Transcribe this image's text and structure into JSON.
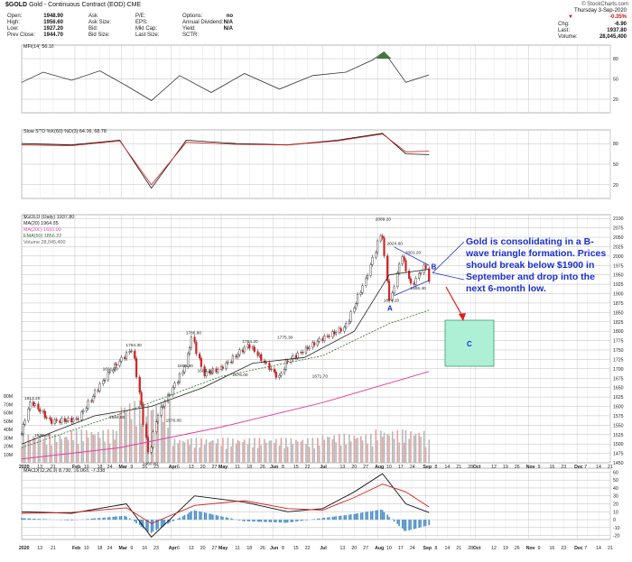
{
  "header": {
    "symbol": "$GOLD",
    "subtitle": "Gold - Continuous Contract (EOD)  CME",
    "credit": "© StockCharts.com",
    "date_line": "Thursday  3-Sep-2020",
    "change_pct": "-0.35%",
    "right_stats": [
      {
        "k": "Chg:",
        "v": "-6.90"
      },
      {
        "k": "Last:",
        "v": "1937.80"
      },
      {
        "k": "Volume:",
        "v": "28,045,400"
      }
    ],
    "quote_col1": [
      {
        "k": "Open:",
        "v": "1948.90"
      },
      {
        "k": "High:",
        "v": "1956.60"
      },
      {
        "k": "Low:",
        "v": "1927.20"
      },
      {
        "k": "Prev Close:",
        "v": "1944.70"
      }
    ],
    "quote_col2": [
      {
        "k": "Ask",
        "v": ""
      },
      {
        "k": "Ask Size:",
        "v": ""
      },
      {
        "k": "Bid:",
        "v": ""
      },
      {
        "k": "Bid Size:",
        "v": ""
      }
    ],
    "quote_col3": [
      {
        "k": "P/E:",
        "v": ""
      },
      {
        "k": "EPS:",
        "v": ""
      },
      {
        "k": "Mkt Cap:",
        "v": ""
      },
      {
        "k": "Last Size:",
        "v": ""
      }
    ],
    "quote_col4": [
      {
        "k": "Options:",
        "v": "no"
      },
      {
        "k": "Annual Dividend:",
        "v": "N/A"
      },
      {
        "k": "Yield:",
        "v": "N/A"
      },
      {
        "k": "SCTR:",
        "v": ""
      }
    ]
  },
  "panels": {
    "mfi_label": "MFI(14) 56.16",
    "sto_label": "Slow STO %K(60) %D(3) 64.06, 68.78",
    "price_legend": [
      "$GOLD (Daily) 1937.80",
      "MA(20) 1964.85",
      "MA(200) 1693.00",
      "EMA(50) 1856.22",
      "Volume 28,045,400"
    ],
    "macd_label": "MACD(12,26,9) 8.730, 16.068, -7.338",
    "mfi_ticks": [
      "80",
      "50",
      "20"
    ],
    "sto_ticks": [
      "80",
      "50",
      "20"
    ],
    "macd_ticks": [
      "60",
      "50",
      "40",
      "30",
      "20",
      "10",
      "0",
      "-10",
      "-20"
    ],
    "price_ticks": [
      "2100",
      "2075",
      "2050",
      "2025",
      "2000",
      "1975",
      "1950",
      "1925",
      "1900",
      "1875",
      "1850",
      "1825",
      "1800",
      "1775",
      "1750",
      "1725",
      "1700",
      "1675",
      "1650",
      "1625",
      "1600",
      "1575",
      "1550",
      "1525",
      "1500",
      "1475",
      "1450"
    ],
    "volume_ticks": [
      "80M",
      "70M",
      "60M",
      "50M",
      "40M",
      "30M",
      "20M",
      "10M"
    ]
  },
  "x_axis": {
    "labels": [
      "2020",
      "13",
      "21",
      "Feb",
      "10",
      "18",
      "24",
      "Mar",
      "9",
      "16",
      "23",
      "Apr",
      "6",
      "13",
      "20",
      "27",
      "May",
      "11",
      "18",
      "26",
      "Jun",
      "8",
      "15",
      "22",
      "Jul",
      "13",
      "20",
      "27",
      "Aug",
      "10",
      "17",
      "24",
      "Sep",
      "8",
      "14",
      "21",
      "28",
      "Oct",
      "12",
      "19",
      "26",
      "Nov",
      "9",
      "16",
      "23",
      "Dec",
      "7",
      "14",
      "21"
    ]
  },
  "annotations": {
    "price_labels": [
      {
        "text": "2089.20",
        "value": 2089.2
      },
      {
        "text": "2024.60",
        "value": 2024.6
      },
      {
        "text": "2001.20",
        "value": 2001.2
      },
      {
        "text": "1874.20",
        "value": 1874.2
      },
      {
        "text": "1906.40",
        "value": 1906.4
      },
      {
        "text": "1786.80",
        "value": 1786.8
      },
      {
        "text": "1764.20",
        "value": 1764.2
      },
      {
        "text": "1775.30",
        "value": 1775.3
      },
      {
        "text": "1754.30",
        "value": 1754.3
      },
      {
        "text": "1699.30",
        "value": 1699.3
      },
      {
        "text": "1691.70",
        "value": 1691.7
      },
      {
        "text": "1686.20",
        "value": 1686.2
      },
      {
        "text": "1676.00",
        "value": 1676.0
      },
      {
        "text": "1671.70",
        "value": 1671.7
      },
      {
        "text": "1613.20",
        "value": 1613.2
      },
      {
        "text": "1584.80",
        "value": 1584.8
      },
      {
        "text": "1576.00",
        "value": 1576.0
      },
      {
        "text": "1536.40",
        "value": 1536.4
      },
      {
        "text": "1460.80",
        "value": 1460.8
      }
    ],
    "wave_a": "A",
    "wave_b": "B",
    "wave_c": "C",
    "callout": "Gold is consolidating in a B-wave triangle formation. Prices should break below $1900 in September and drop into the next 6-month low.",
    "colors": {
      "callout_text": "#1a2fd0",
      "target_box": "#aef0d6",
      "arrow": "#e02020",
      "ma200": "#e040a0",
      "ema50": "#2e6b2e",
      "ma20": "#222222",
      "mfi_fill": "#3d7a3d"
    }
  },
  "chart_data": [
    {
      "type": "line",
      "title": "MFI(14) 56.16",
      "x_range": [
        "2020-01-02",
        "2020-09-03"
      ],
      "ylim": [
        0,
        100
      ],
      "reference_lines": [
        80,
        50,
        20
      ],
      "series": [
        {
          "name": "MFI(14)",
          "x": [
            "2020-01-02",
            "2020-01-15",
            "2020-02-01",
            "2020-02-18",
            "2020-03-05",
            "2020-03-20",
            "2020-04-06",
            "2020-04-25",
            "2020-05-15",
            "2020-06-05",
            "2020-06-25",
            "2020-07-15",
            "2020-07-31",
            "2020-08-07",
            "2020-08-20",
            "2020-09-03"
          ],
          "values": [
            45,
            60,
            48,
            62,
            40,
            18,
            55,
            30,
            58,
            35,
            55,
            60,
            78,
            90,
            45,
            56
          ]
        }
      ]
    },
    {
      "type": "line",
      "title": "Slow STO %K(60) %D(3) 64.06, 68.78",
      "x_range": [
        "2020-01-02",
        "2020-09-03"
      ],
      "ylim": [
        0,
        100
      ],
      "reference_lines": [
        80,
        50,
        20
      ],
      "series": [
        {
          "name": "%K(60)",
          "x": [
            "2020-01-02",
            "2020-02-01",
            "2020-03-01",
            "2020-03-20",
            "2020-04-10",
            "2020-05-10",
            "2020-06-10",
            "2020-07-10",
            "2020-08-06",
            "2020-08-20",
            "2020-09-03"
          ],
          "values": [
            80,
            78,
            85,
            15,
            85,
            80,
            78,
            85,
            95,
            65,
            64
          ]
        },
        {
          "name": "%D(3)",
          "x": [
            "2020-01-02",
            "2020-02-01",
            "2020-03-01",
            "2020-03-20",
            "2020-04-10",
            "2020-05-10",
            "2020-06-10",
            "2020-07-10",
            "2020-08-06",
            "2020-08-20",
            "2020-09-03"
          ],
          "values": [
            78,
            77,
            84,
            20,
            82,
            79,
            78,
            84,
            94,
            68,
            69
          ]
        }
      ]
    },
    {
      "type": "line",
      "title": "$GOLD (Daily) 1937.80",
      "x_range": [
        "2020-01-02",
        "2020-12-21"
      ],
      "ylim": [
        1450,
        2100
      ],
      "series": [
        {
          "name": "$GOLD (Daily)",
          "x": [
            "2020-01-02",
            "2020-01-08",
            "2020-01-20",
            "2020-02-05",
            "2020-02-24",
            "2020-03-09",
            "2020-03-19",
            "2020-03-24",
            "2020-04-09",
            "2020-04-14",
            "2020-04-21",
            "2020-05-01",
            "2020-05-18",
            "2020-06-05",
            "2020-06-10",
            "2020-07-01",
            "2020-07-15",
            "2020-07-28",
            "2020-08-06",
            "2020-08-11",
            "2020-08-18",
            "2020-08-24",
            "2020-09-01",
            "2020-09-03"
          ],
          "values": [
            1527,
            1613,
            1560,
            1565,
            1691,
            1754,
            1470,
            1576,
            1699,
            1786,
            1686,
            1700,
            1764,
            1676,
            1720,
            1780,
            1810,
            1944,
            2069,
            1874,
            2004,
            1920,
            1978,
            1937
          ]
        },
        {
          "name": "MA(20)",
          "x": [
            "2020-01-02",
            "2020-02-15",
            "2020-03-20",
            "2020-04-20",
            "2020-05-20",
            "2020-06-20",
            "2020-07-20",
            "2020-08-10",
            "2020-09-03"
          ],
          "values": [
            1500,
            1575,
            1600,
            1650,
            1715,
            1730,
            1800,
            1950,
            1965
          ]
        },
        {
          "name": "MA(200)",
          "x": [
            "2020-01-02",
            "2020-03-01",
            "2020-05-01",
            "2020-07-01",
            "2020-09-03"
          ],
          "values": [
            1460,
            1490,
            1545,
            1610,
            1693
          ]
        },
        {
          "name": "EMA(50)",
          "x": [
            "2020-01-02",
            "2020-03-01",
            "2020-05-01",
            "2020-07-01",
            "2020-08-10",
            "2020-09-03"
          ],
          "values": [
            1490,
            1580,
            1680,
            1735,
            1820,
            1856
          ]
        }
      ],
      "annotations": [
        "Gold is consolidating in a B-wave triangle formation.",
        "A",
        "B",
        "C"
      ]
    },
    {
      "type": "bar",
      "title": "Volume 28,045,400",
      "x_range": [
        "2020-01-02",
        "2020-09-03"
      ],
      "ylim": [
        0,
        80
      ],
      "ylabel": "",
      "categories": [
        "Jan",
        "Feb",
        "Mar",
        "Apr",
        "May",
        "Jun",
        "Jul",
        "Aug",
        "Sep"
      ],
      "values": [
        35,
        40,
        75,
        30,
        30,
        30,
        35,
        40,
        28
      ]
    },
    {
      "type": "line",
      "title": "MACD(12,26,9) 8.730, 16.068, -7.338",
      "x_range": [
        "2020-01-02",
        "2020-09-03"
      ],
      "ylim": [
        -25,
        65
      ],
      "series": [
        {
          "name": "MACD",
          "x": [
            "2020-01-02",
            "2020-02-01",
            "2020-03-05",
            "2020-03-20",
            "2020-04-15",
            "2020-05-15",
            "2020-06-10",
            "2020-07-01",
            "2020-07-20",
            "2020-08-06",
            "2020-08-20",
            "2020-09-03"
          ],
          "values": [
            10,
            8,
            20,
            -22,
            30,
            22,
            10,
            14,
            35,
            58,
            20,
            9
          ]
        },
        {
          "name": "Signal",
          "x": [
            "2020-01-02",
            "2020-02-01",
            "2020-03-05",
            "2020-03-20",
            "2020-04-15",
            "2020-05-15",
            "2020-06-10",
            "2020-07-01",
            "2020-07-20",
            "2020-08-06",
            "2020-08-20",
            "2020-09-03"
          ],
          "values": [
            8,
            9,
            15,
            -5,
            18,
            24,
            14,
            12,
            28,
            45,
            35,
            16
          ]
        }
      ]
    }
  ]
}
